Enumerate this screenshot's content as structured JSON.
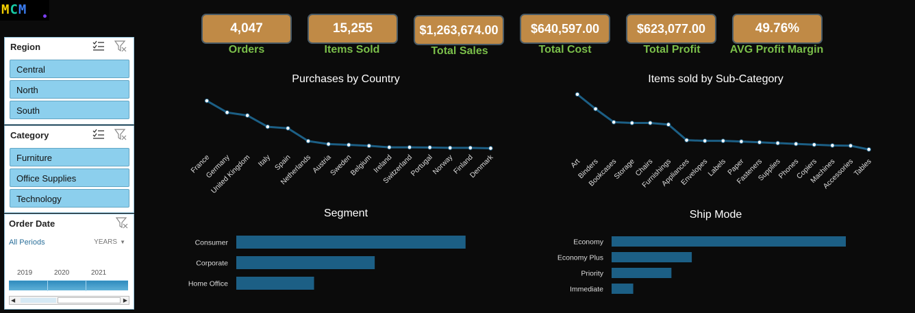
{
  "logo": {
    "l1": "M",
    "l2": "C",
    "l3": "M"
  },
  "slicers": {
    "region": {
      "title": "Region",
      "items": [
        "Central",
        "North",
        "South"
      ]
    },
    "category": {
      "title": "Category",
      "items": [
        "Furniture",
        "Office Supplies",
        "Technology"
      ]
    },
    "order_date": {
      "title": "Order Date",
      "periods_label": "All Periods",
      "level_label": "YEARS",
      "years": [
        "2019",
        "2020",
        "2021"
      ]
    }
  },
  "kpis": [
    {
      "value": "4,047",
      "label": "Orders"
    },
    {
      "value": "15,255",
      "label": "Items Sold"
    },
    {
      "value": "$1,263,674.00",
      "label": "Total Sales"
    },
    {
      "value": "$640,597.00",
      "label": "Total Cost"
    },
    {
      "value": "$623,077.00",
      "label": "Total Profit"
    },
    {
      "value": "49.76%",
      "label": "AVG Profit Margin"
    }
  ],
  "colors": {
    "kpi_bg": "#c08a46",
    "kpi_label": "#7bbf4a",
    "series": "#1c5f85",
    "slicer_item": "#8ccfed"
  },
  "chart_data": [
    {
      "type": "line",
      "title": "Purchases by Country",
      "categories": [
        "France",
        "Germany",
        "United Kingdom",
        "Italy",
        "Spain",
        "Netherlands",
        "Austria",
        "Sweden",
        "Belgium",
        "Ireland",
        "Switzerland",
        "Portugal",
        "Norway",
        "Finland",
        "Denmark"
      ],
      "values": [
        1270,
        960,
        880,
        580,
        540,
        200,
        120,
        100,
        75,
        35,
        35,
        30,
        20,
        20,
        10
      ],
      "ylim": [
        0,
        1400
      ],
      "grid": false,
      "legend": "none"
    },
    {
      "type": "line",
      "title": "Items sold by Sub-Category",
      "categories": [
        "Art",
        "Binders",
        "Bookcases",
        "Storage",
        "Chairs",
        "Furnishings",
        "Appliances",
        "Envelopes",
        "Labels",
        "Paper",
        "Fasteners",
        "Supplies",
        "Phones",
        "Copiers",
        "Machines",
        "Accessories",
        "Tables"
      ],
      "values": [
        2100,
        1550,
        1050,
        1020,
        1020,
        960,
        370,
        345,
        345,
        320,
        290,
        260,
        230,
        200,
        170,
        160,
        20
      ],
      "ylim": [
        0,
        2300
      ],
      "grid": false,
      "legend": "none"
    },
    {
      "type": "bar",
      "orientation": "horizontal",
      "title": "Segment",
      "categories": [
        "Consumer",
        "Corporate",
        "Home Office"
      ],
      "values": [
        7900,
        4770,
        2680
      ],
      "xlim": [
        0,
        8000
      ],
      "grid": false,
      "legend": "none"
    },
    {
      "type": "bar",
      "orientation": "horizontal",
      "title": "Ship Mode",
      "categories": [
        "Economy",
        "Economy Plus",
        "Priority",
        "Immediate"
      ],
      "values": [
        9200,
        3150,
        2350,
        850
      ],
      "xlim": [
        0,
        9200
      ],
      "grid": false,
      "legend": "none"
    }
  ]
}
